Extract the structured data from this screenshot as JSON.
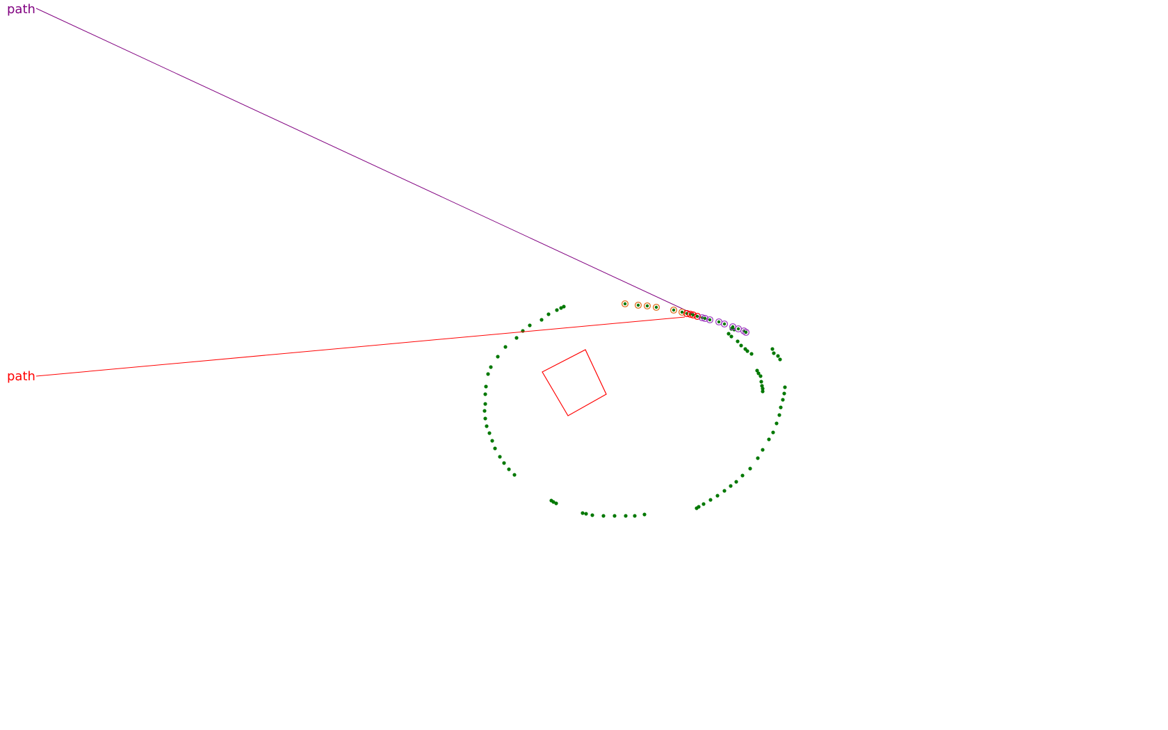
{
  "colors": {
    "background": "#ffffff",
    "scan_points": "#007800",
    "path_upper": "#800080",
    "path_lower": "#ff0000",
    "box": "#ff0000",
    "ring_orange": "#e07020",
    "ring_red": "#ff0000",
    "ring_purple": "#a040c0"
  },
  "labels": {
    "path_upper": "path",
    "path_lower": "path"
  }
}
